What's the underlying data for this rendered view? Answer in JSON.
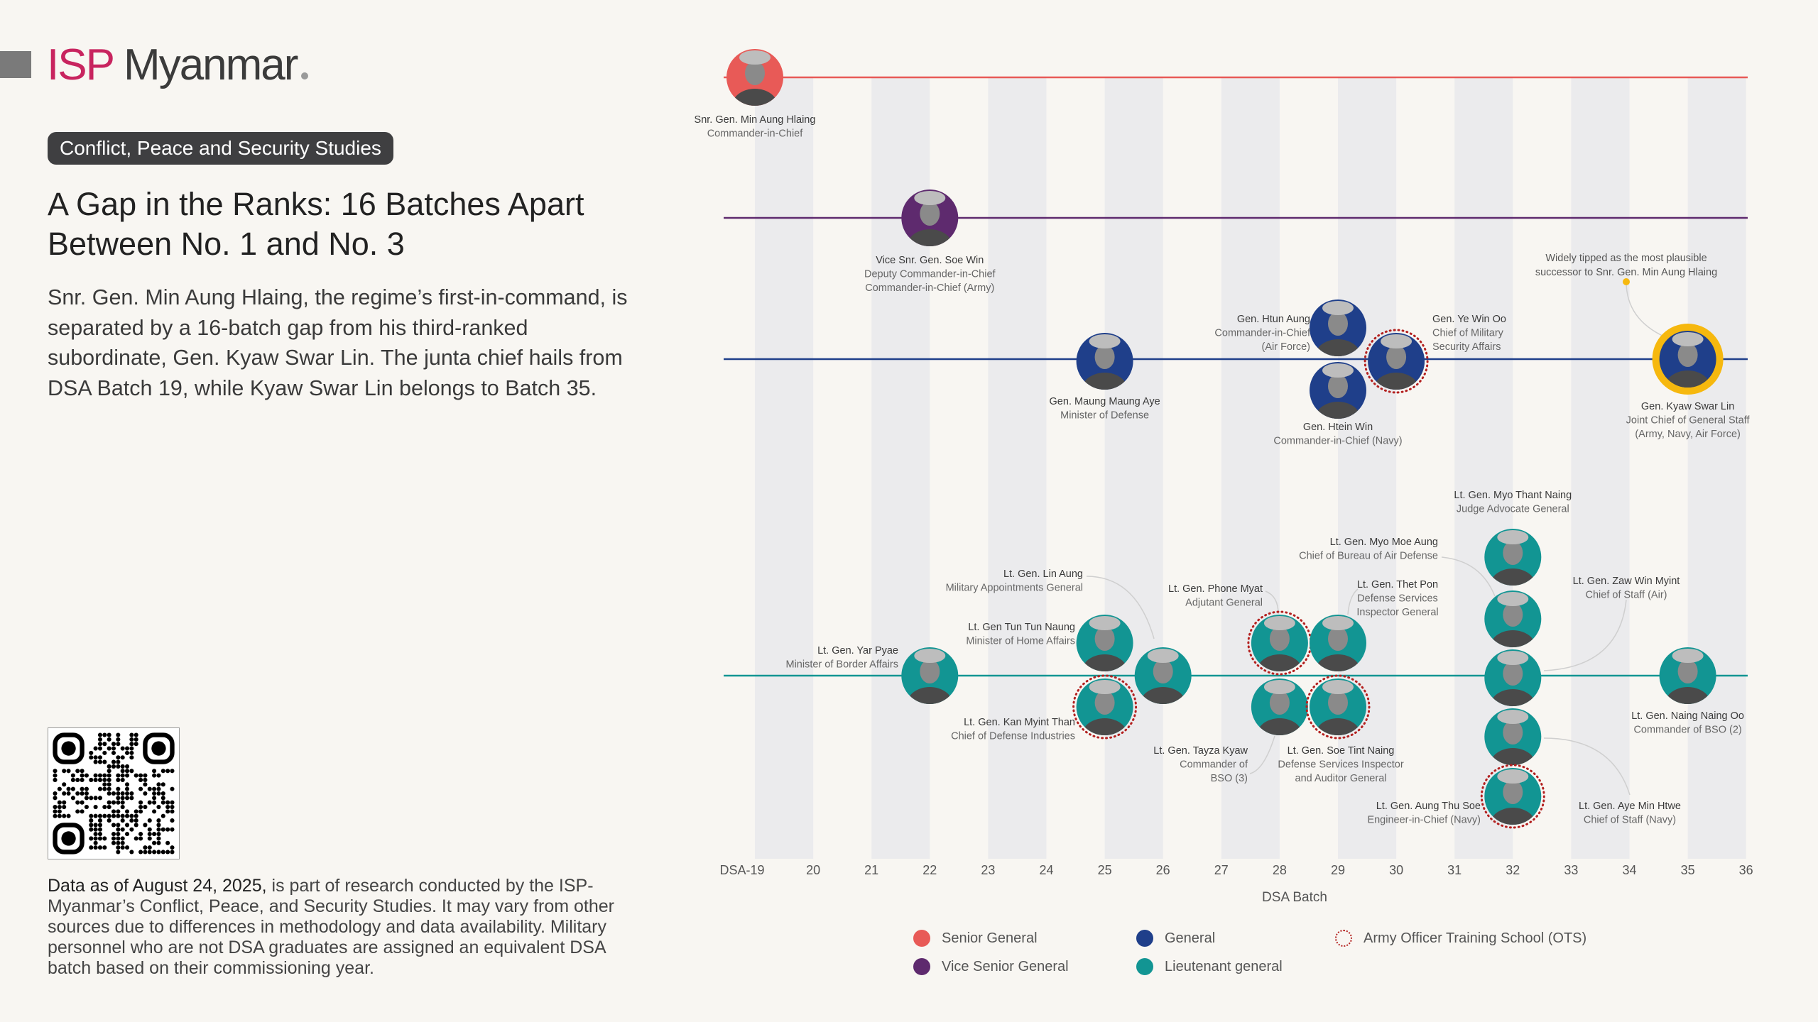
{
  "brand": {
    "isp": "ISP",
    "myanmar": "Myanmar"
  },
  "badge": "Conflict, Peace and Security Studies",
  "title": "A Gap in the Ranks: 16 Batches Apart Between No. 1 and No. 3",
  "body": "Snr. Gen. Min Aung Hlaing, the regime’s first-in-command, is separated by a 16-batch gap from his third-ranked subordinate, Gen. Kyaw Swar Lin. The junta chief hails from DSA Batch 19, while Kyaw Swar Lin belongs to Batch 35.",
  "footnote": {
    "lead": "Data as of August 24, 2025,",
    "rest": " is part of research conducted by the ISP-Myanmar’s Conflict, Peace, and Security Studies. It may vary from other sources due to differences in methodology and data availability. Military personnel who are not DSA graduates are assigned an equivalent DSA batch based on their commissioning year."
  },
  "chart_data": {
    "type": "scatter",
    "xlabel": "DSA Batch",
    "xlim": [
      19,
      36
    ],
    "tick_labels": [
      "DSA-19",
      "20",
      "21",
      "22",
      "23",
      "24",
      "25",
      "26",
      "27",
      "28",
      "29",
      "30",
      "31",
      "32",
      "33",
      "34",
      "35",
      "36"
    ],
    "rank_rows": [
      "senior",
      "vice",
      "general",
      "lt"
    ],
    "colors": {
      "senior": "#e85a57",
      "vice": "#5e2a6e",
      "general": "#1f3f8a",
      "lt": "#129593",
      "ots": "#b3201f",
      "highlight": "#f6b80e"
    },
    "legend": [
      {
        "key": "senior",
        "label": "Senior General"
      },
      {
        "key": "vice",
        "label": "Vice Senior General"
      },
      {
        "key": "general",
        "label": "General"
      },
      {
        "key": "lt",
        "label": "Lieutenant general"
      },
      {
        "key": "ots",
        "label": "Army Officer Training School (OTS)"
      }
    ],
    "annotation": "Widely tipped as the most plausible successor to Snr. Gen. Min Aung Hlaing",
    "people": [
      {
        "name": "Snr. Gen. Min Aung Hlaing",
        "role": [
          "Commander-in-Chief"
        ],
        "batch": 19,
        "rank": "senior",
        "ots": false
      },
      {
        "name": "Vice Snr. Gen. Soe Win",
        "role": [
          "Deputy Commander-in-Chief",
          "Commander-in-Chief (Army)"
        ],
        "batch": 22,
        "rank": "vice",
        "ots": false
      },
      {
        "name": "Gen. Maung Maung Aye",
        "role": [
          "Minister of Defense"
        ],
        "batch": 25,
        "rank": "general",
        "ots": false
      },
      {
        "name": "Gen. Htun Aung",
        "role": [
          "Commander-in-Chief",
          "(Air Force)"
        ],
        "batch": 29,
        "rank": "general",
        "ots": false
      },
      {
        "name": "Gen. Htein Win",
        "role": [
          "Commander-in-Chief (Navy)"
        ],
        "batch": 29,
        "rank": "general",
        "ots": false
      },
      {
        "name": "Gen. Ye Win Oo",
        "role": [
          "Chief of Military",
          "Security Affairs"
        ],
        "batch": 30,
        "rank": "general",
        "ots": true
      },
      {
        "name": "Gen. Kyaw Swar Lin",
        "role": [
          "Joint Chief of General Staff",
          "(Army, Navy, Air Force)"
        ],
        "batch": 35,
        "rank": "general",
        "ots": false,
        "highlight": true
      },
      {
        "name": "Lt. Gen. Yar Pyae",
        "role": [
          "Minister of Border Affairs"
        ],
        "batch": 22,
        "rank": "lt",
        "ots": false
      },
      {
        "name": "Lt. Gen Tun Tun Naung",
        "role": [
          "Minister of Home Affairs"
        ],
        "batch": 25,
        "rank": "lt",
        "ots": false
      },
      {
        "name": "Lt. Gen. Kan Myint Than",
        "role": [
          "Chief of Defense Industries"
        ],
        "batch": 25,
        "rank": "lt",
        "ots": true
      },
      {
        "name": "Lt. Gen. Lin Aung",
        "role": [
          "Military Appointments General"
        ],
        "batch": 26,
        "rank": "lt",
        "ots": false
      },
      {
        "name": "Lt. Gen. Phone Myat",
        "role": [
          "Adjutant General"
        ],
        "batch": 28,
        "rank": "lt",
        "ots": true
      },
      {
        "name": "Lt. Gen. Thet Pon",
        "role": [
          "Defense Services",
          "Inspector General"
        ],
        "batch": 29,
        "rank": "lt",
        "ots": false
      },
      {
        "name": "Lt. Gen. Tayza Kyaw",
        "role": [
          "Commander of",
          "BSO (3)"
        ],
        "batch": 28,
        "rank": "lt",
        "ots": false
      },
      {
        "name": "Lt. Gen. Soe Tint Naing",
        "role": [
          "Defense Services Inspector",
          "and Auditor General"
        ],
        "batch": 29,
        "rank": "lt",
        "ots": true
      },
      {
        "name": "Lt. Gen. Myo Thant Naing",
        "role": [
          "Judge Advocate General"
        ],
        "batch": 32,
        "rank": "lt",
        "ots": false
      },
      {
        "name": "Lt. Gen. Myo Moe Aung",
        "role": [
          "Chief of Bureau of Air Defense"
        ],
        "batch": 32,
        "rank": "lt",
        "ots": false
      },
      {
        "name": "Lt. Gen. Zaw Win Myint",
        "role": [
          "Chief of Staff (Air)"
        ],
        "batch": 32,
        "rank": "lt",
        "ots": false
      },
      {
        "name": "Lt. Gen. Aye Min Htwe",
        "role": [
          "Chief of Staff (Navy)"
        ],
        "batch": 32,
        "rank": "lt",
        "ots": false
      },
      {
        "name": "Lt. Gen. Aung Thu Soe",
        "role": [
          "Engineer-in-Chief (Navy)"
        ],
        "batch": 32,
        "rank": "lt",
        "ots": true
      },
      {
        "name": "Lt. Gen. Naing Naing Oo",
        "role": [
          "Commander of BSO (2)"
        ],
        "batch": 35,
        "rank": "lt",
        "ots": false
      }
    ]
  }
}
